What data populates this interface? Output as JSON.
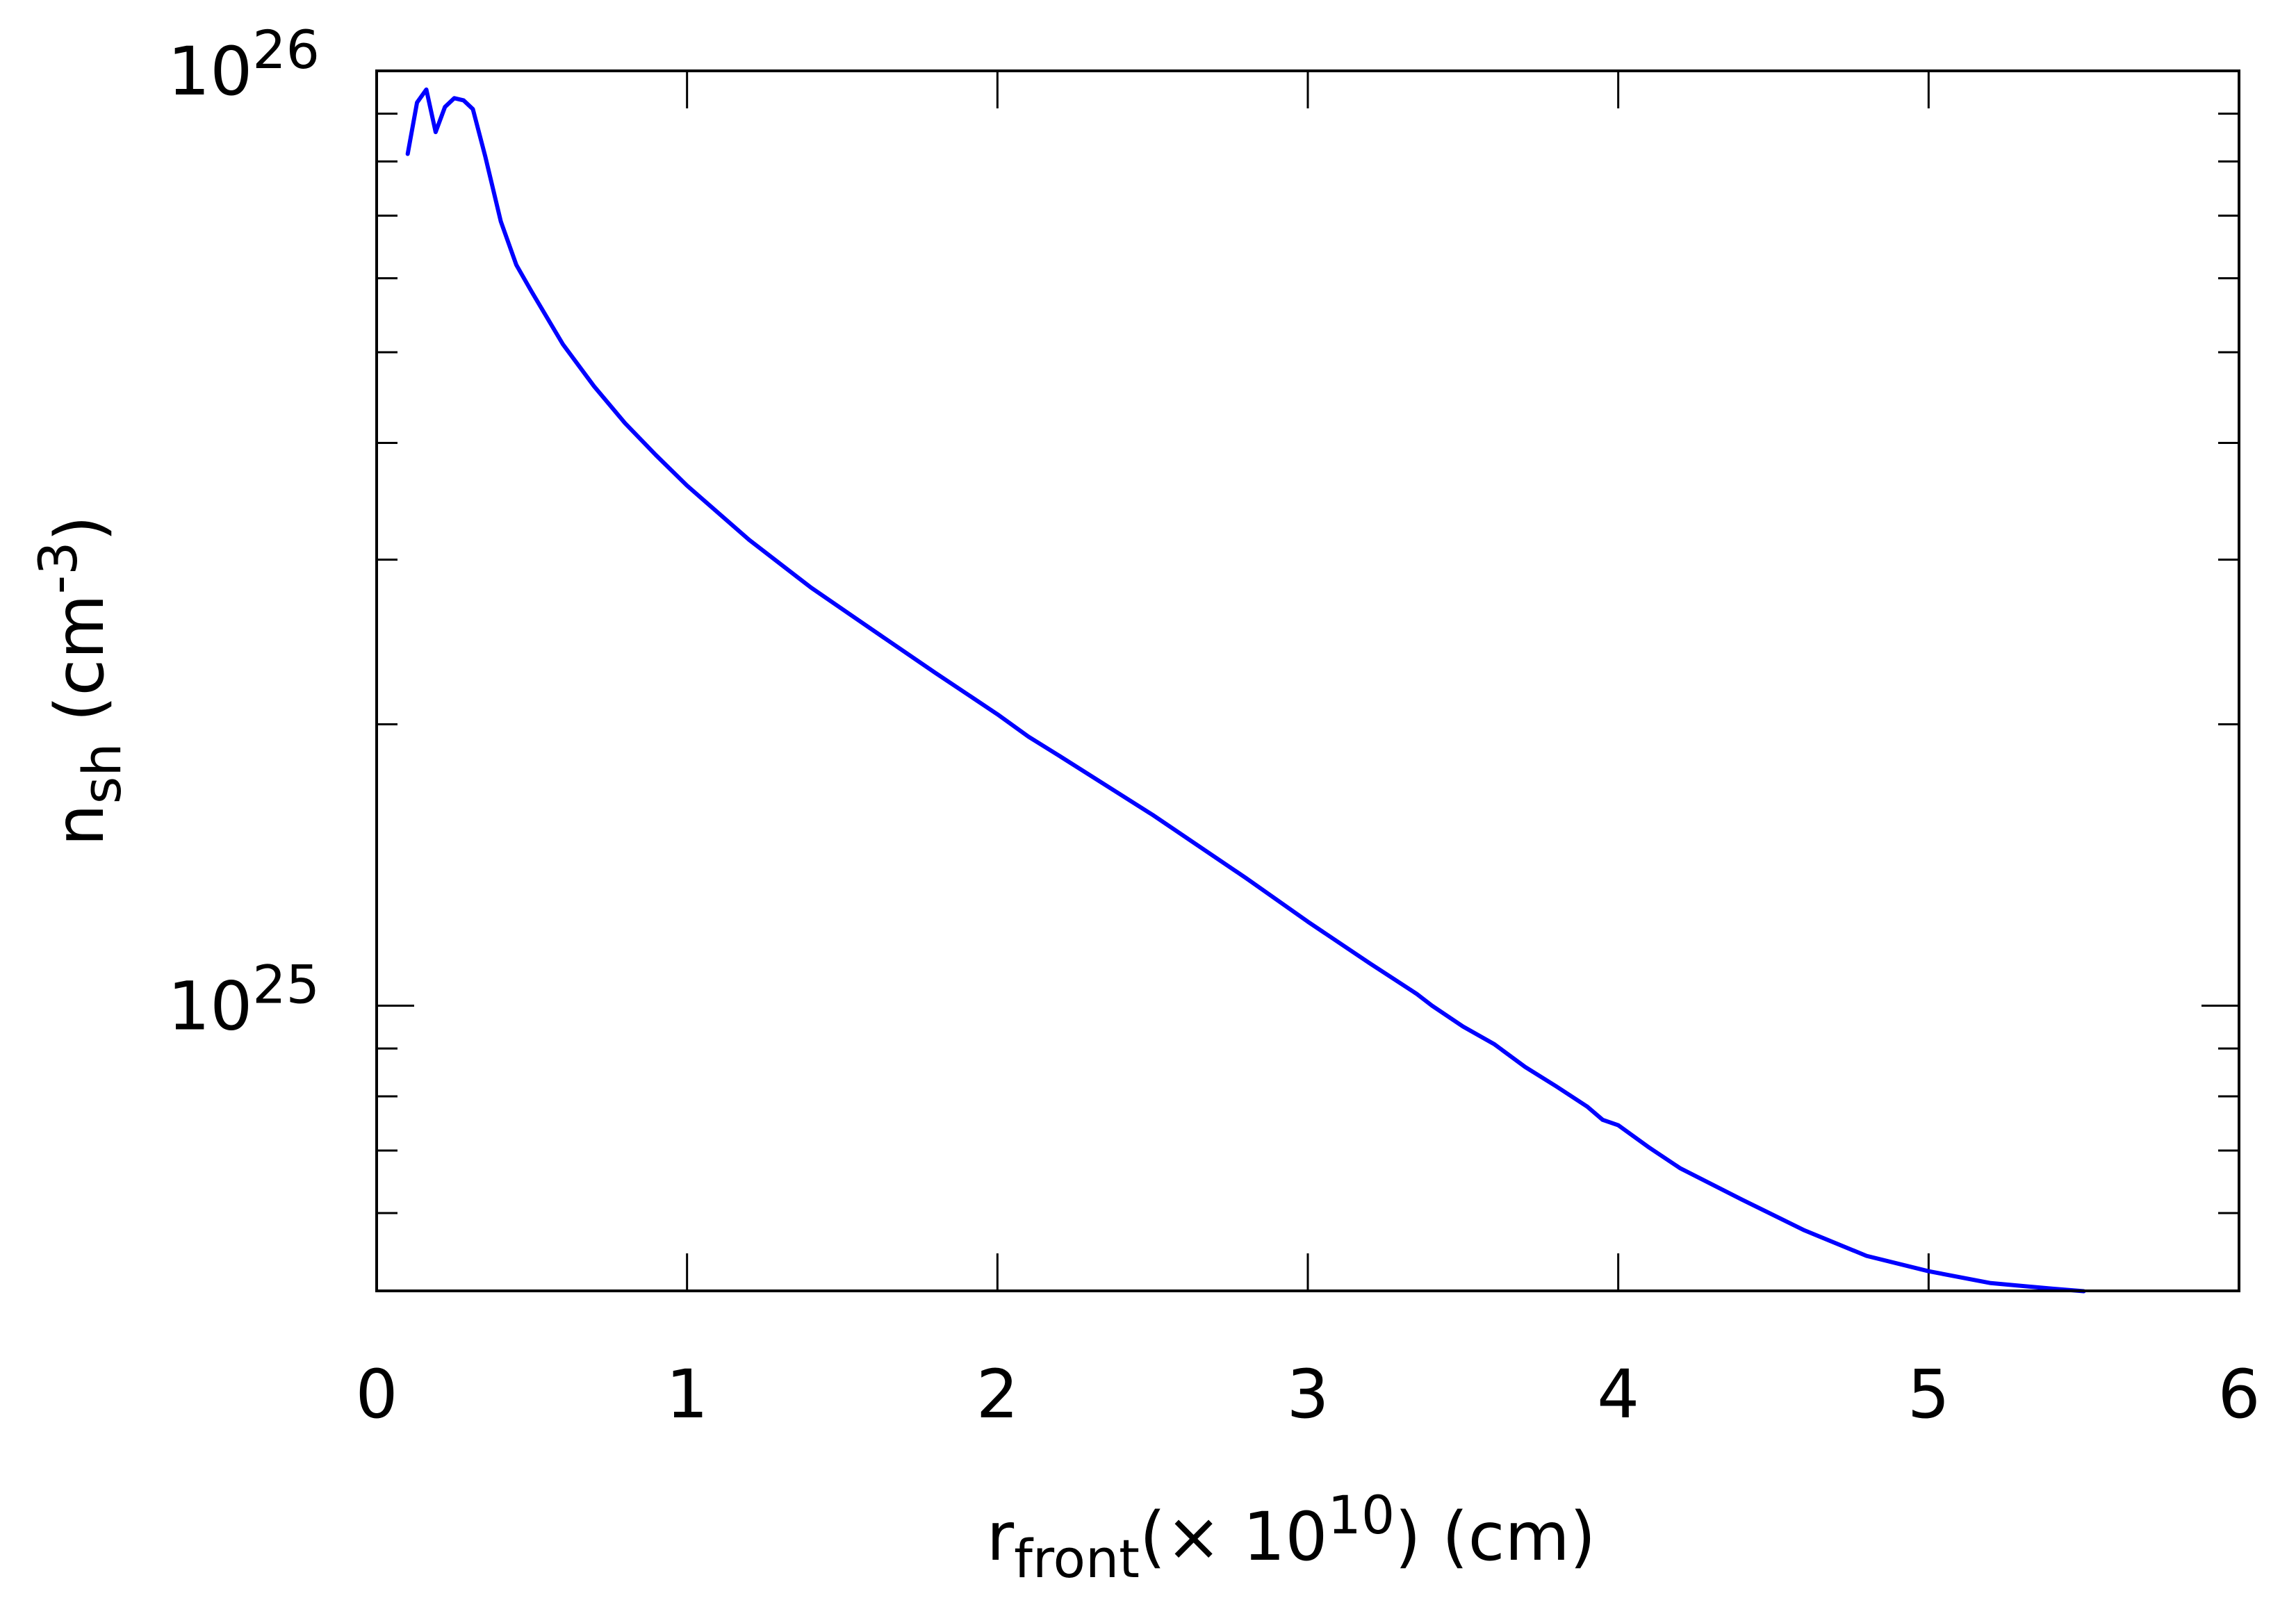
{
  "chart_data": {
    "type": "line",
    "title": "",
    "xlabel": {
      "main": "r",
      "sub": "front",
      "prefix": "(× 10",
      "exp": "10",
      "suffix": ") (cm)"
    },
    "ylabel": {
      "main": "n",
      "sub": "sh",
      "prefix": " (cm",
      "exp": "-3",
      "suffix": ")"
    },
    "xlim": [
      0,
      6
    ],
    "ylim": [
      4.954e+24,
      1e+26
    ],
    "yscale": "log",
    "grid": false,
    "legend": "none",
    "x_ticks": [
      {
        "value": 0,
        "label": "0"
      },
      {
        "value": 1,
        "label": "1"
      },
      {
        "value": 2,
        "label": "2"
      },
      {
        "value": 3,
        "label": "3"
      },
      {
        "value": 4,
        "label": "4"
      },
      {
        "value": 5,
        "label": "5"
      },
      {
        "value": 6,
        "label": "6"
      }
    ],
    "y_ticks": [
      {
        "value": 1e+25,
        "base": "10",
        "exp": "25"
      },
      {
        "value": 1e+26,
        "base": "10",
        "exp": "26"
      }
    ],
    "y_minor_ticks": [
      6e+24,
      7e+24,
      8e+24,
      9e+24,
      2e+25,
      3e+25,
      4e+25,
      5e+25,
      6e+25,
      7e+25,
      8e+25,
      9e+25
    ],
    "series": [
      {
        "color": "#0000ff",
        "x": [
          0.1,
          0.13,
          0.16,
          0.19,
          0.22,
          0.25,
          0.28,
          0.31,
          0.35,
          0.4,
          0.45,
          0.5,
          0.6,
          0.7,
          0.8,
          0.9,
          1.0,
          1.2,
          1.4,
          1.6,
          1.8,
          2.0,
          2.1,
          2.2,
          2.5,
          2.8,
          3.0,
          3.2,
          3.35,
          3.4,
          3.5,
          3.6,
          3.7,
          3.8,
          3.9,
          3.95,
          4.0,
          4.1,
          4.2,
          4.4,
          4.6,
          4.8,
          5.0,
          5.2,
          5.4,
          5.5
        ],
        "y": [
          8.15e+25,
          9.25e+25,
          9.55e+25,
          8.6e+25,
          9.15e+25,
          9.35e+25,
          9.3e+25,
          9.1e+25,
          8.1e+25,
          6.9e+25,
          6.2e+25,
          5.8e+25,
          5.1e+25,
          4.6e+25,
          4.2e+25,
          3.88e+25,
          3.6e+25,
          3.15e+25,
          2.8e+25,
          2.52e+25,
          2.27e+25,
          2.05e+25,
          1.94e+25,
          1.85e+25,
          1.6e+25,
          1.37e+25,
          1.23e+25,
          1.11e+25,
          1.03e+25,
          1e+25,
          9.5e+24,
          9.1e+24,
          8.6e+24,
          8.2e+24,
          7.8e+24,
          7.55e+24,
          7.45e+24,
          7.05e+24,
          6.7e+24,
          6.2e+24,
          5.75e+24,
          5.4e+24,
          5.2e+24,
          5.05e+24,
          4.98e+24,
          4.95e+24
        ]
      }
    ]
  }
}
